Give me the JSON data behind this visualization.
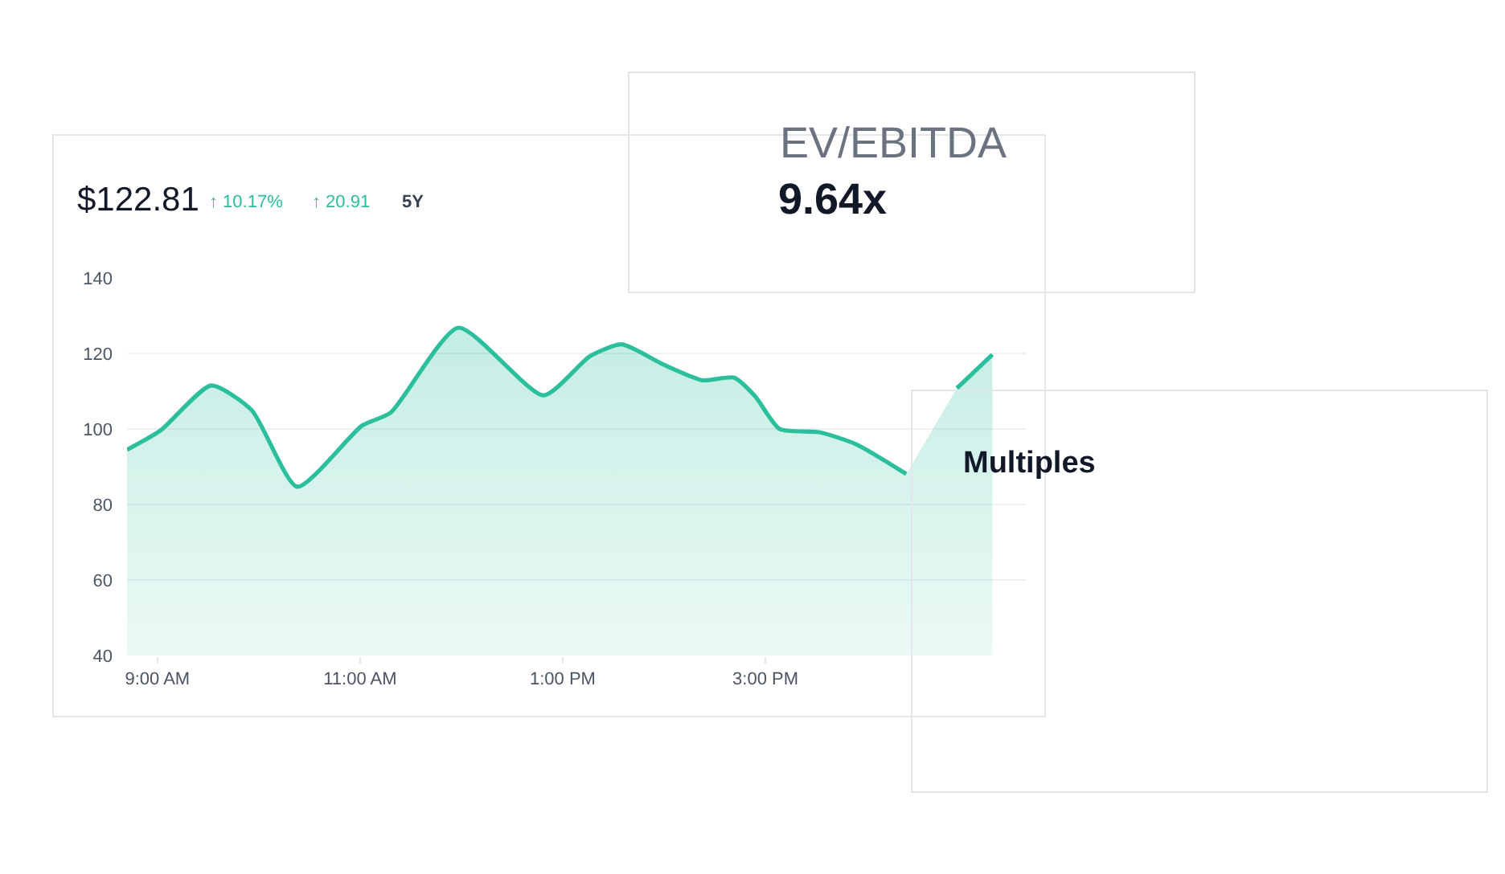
{
  "chart_data": {
    "type": "area",
    "title": "$122.81",
    "annotations": [
      "↑ 10.17%",
      "↑ 20.91",
      "5Y",
      "EV/EBITDA",
      "9.64x",
      "Multiples"
    ],
    "series": [
      {
        "color": "#2bbf9b",
        "x": [
          8.7,
          9.03,
          9.53,
          9.93,
          10.38,
          11.02,
          11.3,
          11.97,
          12.81,
          13.27,
          13.58,
          14.0,
          14.38,
          14.69,
          14.9,
          15.14,
          15.54,
          15.9,
          16.39,
          16.6,
          16.89,
          17.24
        ],
        "values": [
          94.5,
          99.6,
          111.5,
          105,
          84.7,
          100.9,
          104.3,
          126.8,
          108.9,
          119.3,
          122.4,
          117,
          112.9,
          113.6,
          108.6,
          100,
          99.1,
          95.9,
          88.1,
          null,
          110.8,
          119.7
        ]
      }
    ],
    "xlim": [
      8.7,
      17.57
    ],
    "xticks": [
      {
        "value": 9,
        "label": "9:00 AM"
      },
      {
        "value": 11,
        "label": "11:00 AM"
      },
      {
        "value": 13,
        "label": "1:00 PM"
      },
      {
        "value": 15,
        "label": "3:00 PM"
      }
    ],
    "ylim": [
      40,
      140
    ],
    "yticks": [
      40,
      60,
      80,
      100,
      120,
      140
    ],
    "grid": "y",
    "marker": "none",
    "line_style": "solid"
  }
}
